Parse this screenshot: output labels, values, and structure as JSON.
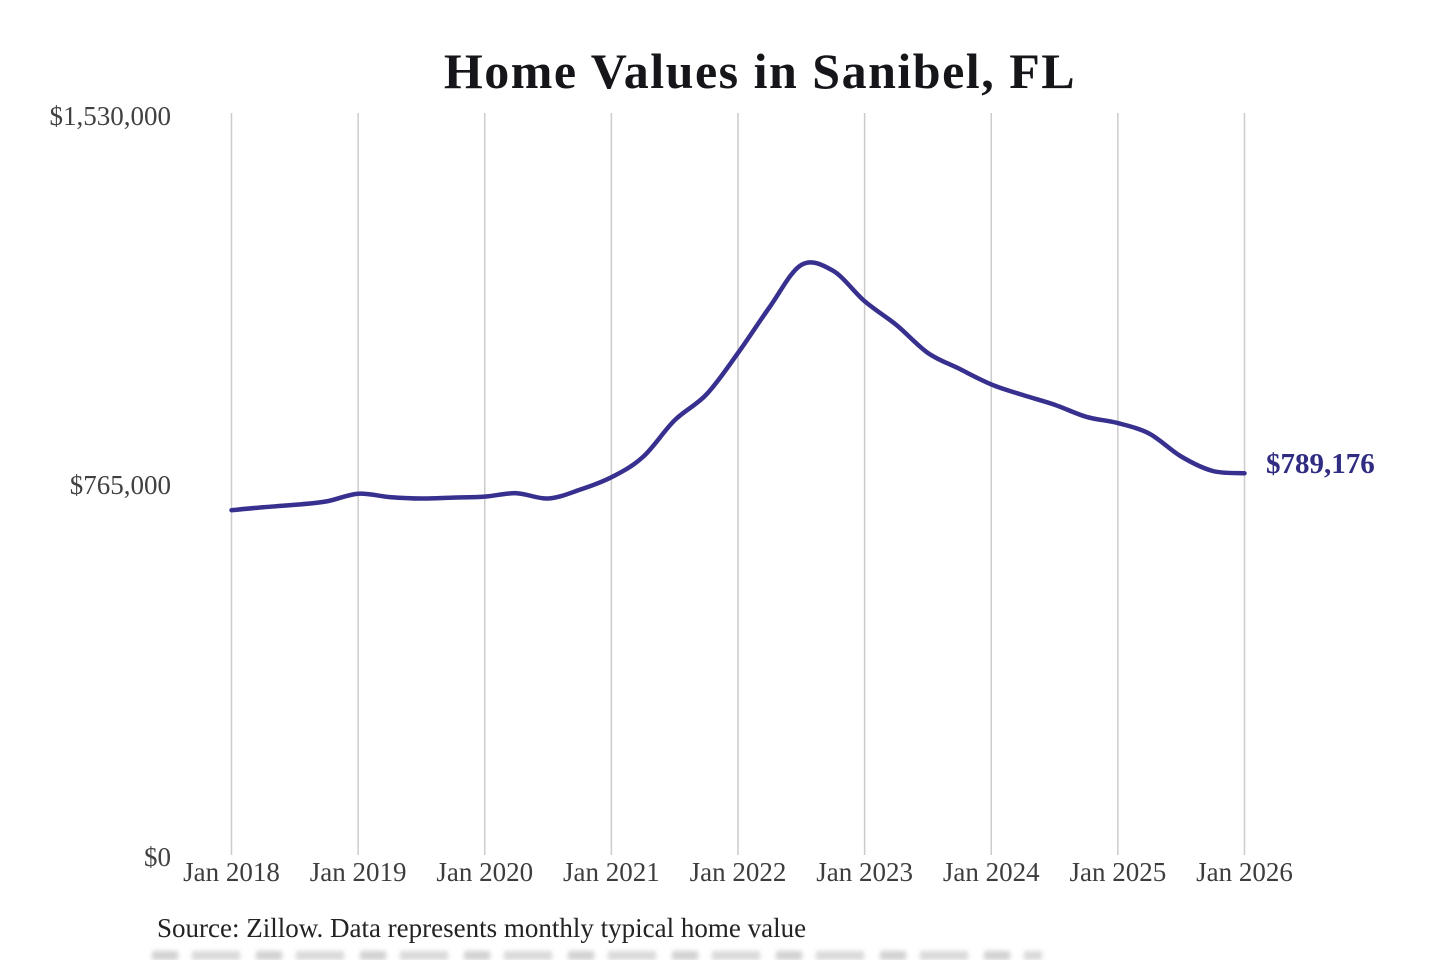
{
  "header": {
    "title": "Home Values in Sanibel, FL"
  },
  "footer": {
    "source_note": "Source: Zillow. Data represents monthly typical home value"
  },
  "chart_data": {
    "type": "line",
    "title": "Home Values in Sanibel, FL",
    "xlabel": "",
    "ylabel": "",
    "ylim": [
      0,
      1530000
    ],
    "grid": "vertical-only",
    "legend": "none",
    "line_color": "#37308f",
    "grid_color": "#cccccc",
    "x_ticks": [
      "Jan 2018",
      "Jan 2019",
      "Jan 2020",
      "Jan 2021",
      "Jan 2022",
      "Jan 2023",
      "Jan 2024",
      "Jan 2025",
      "Jan 2026"
    ],
    "y_ticks": [
      {
        "label": "$1,530,000",
        "value": 1530000
      },
      {
        "label": "$765,000",
        "value": 765000
      },
      {
        "label": "$0",
        "value": 0
      }
    ],
    "annotation": {
      "text": "$789,176",
      "value": 789176,
      "color": "#2f2c82",
      "position": "right-of-line-end"
    },
    "series": [
      {
        "name": "Monthly typical home value",
        "interval": "quarterly",
        "points": [
          {
            "date": "Jan 2018",
            "value": 713000
          },
          {
            "date": "Apr 2018",
            "value": 719000
          },
          {
            "date": "Jul 2018",
            "value": 724000
          },
          {
            "date": "Oct 2018",
            "value": 731000
          },
          {
            "date": "Jan 2019",
            "value": 747000
          },
          {
            "date": "Apr 2019",
            "value": 740000
          },
          {
            "date": "Jul 2019",
            "value": 737000
          },
          {
            "date": "Oct 2019",
            "value": 739000
          },
          {
            "date": "Jan 2020",
            "value": 741000
          },
          {
            "date": "Apr 2020",
            "value": 748000
          },
          {
            "date": "Jul 2020",
            "value": 737000
          },
          {
            "date": "Oct 2020",
            "value": 755000
          },
          {
            "date": "Jan 2021",
            "value": 781000
          },
          {
            "date": "Apr 2021",
            "value": 823000
          },
          {
            "date": "Jul 2021",
            "value": 899000
          },
          {
            "date": "Oct 2021",
            "value": 952000
          },
          {
            "date": "Jan 2022",
            "value": 1038000
          },
          {
            "date": "Apr 2022",
            "value": 1133000
          },
          {
            "date": "Jul 2022",
            "value": 1220000
          },
          {
            "date": "Oct 2022",
            "value": 1208000
          },
          {
            "date": "Jan 2023",
            "value": 1145000
          },
          {
            "date": "Apr 2023",
            "value": 1096000
          },
          {
            "date": "Jul 2023",
            "value": 1038000
          },
          {
            "date": "Oct 2023",
            "value": 1005000
          },
          {
            "date": "Jan 2024",
            "value": 973000
          },
          {
            "date": "Apr 2024",
            "value": 951000
          },
          {
            "date": "Jul 2024",
            "value": 931000
          },
          {
            "date": "Oct 2024",
            "value": 906000
          },
          {
            "date": "Jan 2025",
            "value": 893000
          },
          {
            "date": "Apr 2025",
            "value": 871000
          },
          {
            "date": "Jul 2025",
            "value": 824000
          },
          {
            "date": "Oct 2025",
            "value": 794000
          },
          {
            "date": "Jan 2026",
            "value": 789176
          }
        ]
      }
    ]
  }
}
